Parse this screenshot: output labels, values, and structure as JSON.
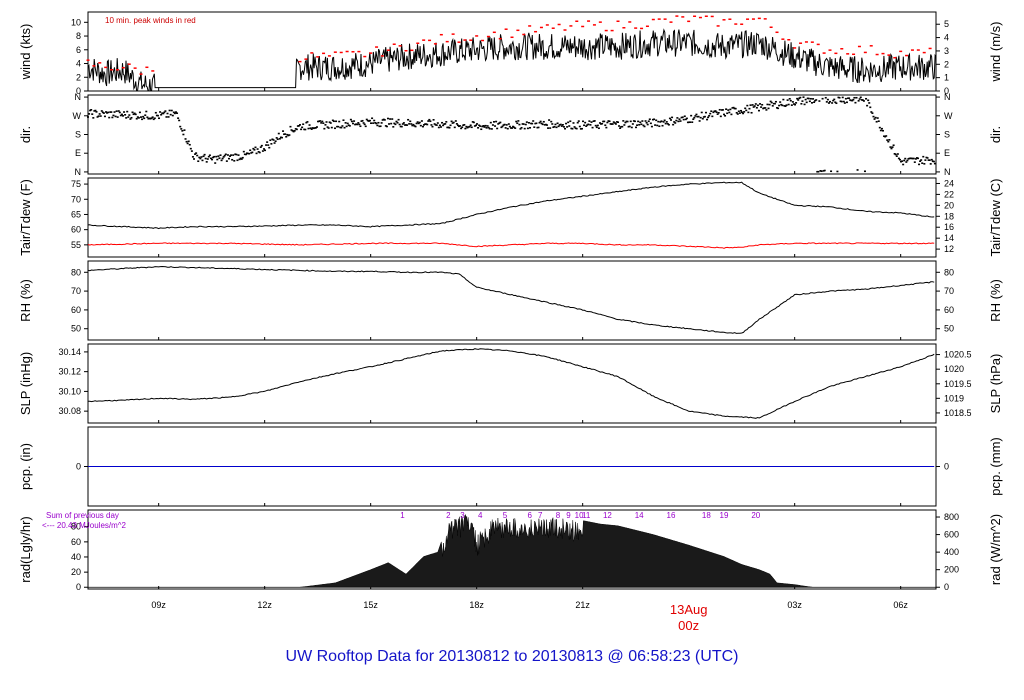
{
  "footer_title": "UW Rooftop Data for 20130812  to  20130813 @ 06:58:23  (UTC)",
  "date_marker": {
    "day": "13Aug",
    "hour": "00z",
    "color": "#e00000"
  },
  "x_axis": {
    "start_hour": 7.0,
    "end_hour": 31.0,
    "ticks": [
      {
        "hour": 9,
        "label": "09z"
      },
      {
        "hour": 12,
        "label": "12z"
      },
      {
        "hour": 15,
        "label": "15z"
      },
      {
        "hour": 18,
        "label": "18z"
      },
      {
        "hour": 21,
        "label": "21z"
      },
      {
        "hour": 27,
        "label": "03z"
      },
      {
        "hour": 30,
        "label": "06z"
      }
    ]
  },
  "chart_data": [
    {
      "id": "wind",
      "type": "line",
      "ylabel_left": "wind (kts)",
      "ylabel_right": "wind (m/s)",
      "annotation": "10 min. peak winds in red",
      "annotation_color": "#cc0000",
      "ylim": [
        0,
        11.5
      ],
      "left_ticks": [
        {
          "v": 0,
          "l": "0"
        },
        {
          "v": 2,
          "l": "2"
        },
        {
          "v": 4,
          "l": "4"
        },
        {
          "v": 6,
          "l": "6"
        },
        {
          "v": 8,
          "l": "8"
        },
        {
          "v": 10,
          "l": "10"
        }
      ],
      "right_ticks": [
        {
          "v": 0,
          "l": "0"
        },
        {
          "v": 1.944,
          "l": "1"
        },
        {
          "v": 3.888,
          "l": "2"
        },
        {
          "v": 5.832,
          "l": "3"
        },
        {
          "v": 7.776,
          "l": "4"
        },
        {
          "v": 9.72,
          "l": "5"
        }
      ],
      "series": [
        {
          "color": "#000000",
          "hours": [
            7,
            7.5,
            8,
            8.5,
            9,
            9.5,
            10,
            10.5,
            11,
            11.5,
            12,
            12.5,
            13,
            14,
            15,
            16,
            17,
            18,
            19,
            20,
            21,
            22,
            23,
            24,
            25,
            26,
            27,
            28,
            29,
            30,
            31
          ],
          "values": [
            3.5,
            2.5,
            3,
            1,
            0.5,
            0.5,
            0.5,
            0.5,
            0.5,
            0.5,
            0.5,
            0.5,
            3.5,
            3.5,
            4,
            5,
            5.5,
            6,
            6.5,
            6.5,
            6.5,
            6.5,
            7,
            7,
            6.5,
            7,
            5,
            3.5,
            3,
            3.5,
            3.5
          ]
        },
        {
          "color": "#ff0000",
          "hours": [
            7,
            7.5,
            8,
            8.5,
            13,
            14,
            15,
            16,
            17,
            18,
            19,
            20,
            21,
            22,
            23,
            24,
            25,
            26,
            27,
            28,
            29,
            30,
            31
          ],
          "values": [
            4,
            3.5,
            3.5,
            3,
            5,
            5,
            5.5,
            6.5,
            7.5,
            8,
            8.5,
            9,
            9.5,
            9.5,
            10,
            10.5,
            10,
            10.5,
            7,
            6,
            6,
            5.5,
            5.5
          ]
        }
      ]
    },
    {
      "id": "dir",
      "type": "scatter",
      "ylabel_left": "dir.",
      "ylabel_right": "dir.",
      "ylim": [
        -10,
        370
      ],
      "left_ticks": [
        {
          "v": 0,
          "l": "N"
        },
        {
          "v": 90,
          "l": "E"
        },
        {
          "v": 180,
          "l": "S"
        },
        {
          "v": 270,
          "l": "W"
        },
        {
          "v": 360,
          "l": "N"
        }
      ],
      "right_ticks": [
        {
          "v": 0,
          "l": "N"
        },
        {
          "v": 90,
          "l": "E"
        },
        {
          "v": 180,
          "l": "S"
        },
        {
          "v": 270,
          "l": "W"
        },
        {
          "v": 360,
          "l": "N"
        }
      ],
      "series": [
        {
          "color": "#000000",
          "hours": [
            7,
            8,
            9,
            9.5,
            10,
            10.5,
            11,
            11.5,
            12,
            12.5,
            13,
            14,
            15,
            16,
            17,
            18,
            19,
            20,
            21,
            22,
            23,
            24,
            25,
            26,
            27,
            28,
            29,
            30,
            31
          ],
          "values": [
            280,
            275,
            270,
            280,
            75,
            60,
            70,
            80,
            120,
            180,
            220,
            230,
            240,
            235,
            230,
            220,
            225,
            230,
            225,
            230,
            235,
            255,
            285,
            310,
            340,
            350,
            350,
            50,
            60
          ]
        }
      ]
    },
    {
      "id": "temp",
      "type": "line",
      "ylabel_left": "Tair/Tdew (F)",
      "ylabel_right": "Tair/Tdew (C)",
      "ylim": [
        51,
        77
      ],
      "left_ticks": [
        {
          "v": 55,
          "l": "55"
        },
        {
          "v": 60,
          "l": "60"
        },
        {
          "v": 65,
          "l": "65"
        },
        {
          "v": 70,
          "l": "70"
        },
        {
          "v": 75,
          "l": "75"
        }
      ],
      "right_ticks": [
        {
          "v": 53.6,
          "l": "12"
        },
        {
          "v": 57.2,
          "l": "14"
        },
        {
          "v": 60.8,
          "l": "16"
        },
        {
          "v": 64.4,
          "l": "18"
        },
        {
          "v": 68.0,
          "l": "20"
        },
        {
          "v": 71.6,
          "l": "22"
        },
        {
          "v": 75.2,
          "l": "24"
        }
      ],
      "series": [
        {
          "color": "#000000",
          "hours": [
            7,
            8,
            9,
            10,
            11,
            12,
            13,
            14,
            15,
            16,
            17,
            18,
            19,
            20,
            21,
            22,
            23,
            24,
            25,
            25.5,
            26,
            27,
            28,
            29,
            30,
            31
          ],
          "values": [
            61.5,
            61,
            60.5,
            61,
            61,
            61.2,
            61.5,
            61.5,
            61,
            61.5,
            62,
            65,
            67.5,
            69.5,
            71,
            72.5,
            74,
            75,
            75.5,
            75.5,
            72,
            68,
            67.5,
            66,
            65.5,
            64
          ]
        },
        {
          "color": "#ff0000",
          "hours": [
            7,
            9,
            11,
            13,
            15,
            16,
            17,
            17.5,
            18,
            19,
            20,
            21,
            22,
            23,
            24,
            24.5,
            25,
            25.5,
            26,
            27,
            28,
            29,
            30,
            31
          ],
          "values": [
            55,
            55.5,
            55.5,
            55,
            55.5,
            55.5,
            55.5,
            55,
            54.5,
            55,
            55.5,
            55.5,
            55,
            55,
            54.5,
            54.3,
            54,
            54.2,
            55,
            55.5,
            55.5,
            55.5,
            55.5,
            55.5
          ]
        }
      ]
    },
    {
      "id": "rh",
      "type": "line",
      "ylabel_left": "RH (%)",
      "ylabel_right": "RH (%)",
      "ylim": [
        44,
        86
      ],
      "left_ticks": [
        {
          "v": 50,
          "l": "50"
        },
        {
          "v": 60,
          "l": "60"
        },
        {
          "v": 70,
          "l": "70"
        },
        {
          "v": 80,
          "l": "80"
        }
      ],
      "right_ticks": [
        {
          "v": 50,
          "l": "50"
        },
        {
          "v": 60,
          "l": "60"
        },
        {
          "v": 70,
          "l": "70"
        },
        {
          "v": 80,
          "l": "80"
        }
      ],
      "series": [
        {
          "color": "#000000",
          "hours": [
            7,
            8,
            9,
            10,
            11,
            12,
            13,
            14,
            15,
            16,
            17,
            17.5,
            18,
            19,
            20,
            21,
            22,
            23,
            24,
            25,
            25.5,
            26,
            27,
            28,
            29,
            30,
            31
          ],
          "values": [
            81,
            82,
            83,
            82.5,
            82,
            81.5,
            81,
            80.5,
            80.5,
            80,
            80,
            79,
            72,
            68,
            64,
            60,
            55,
            52,
            50,
            48,
            47.5,
            55,
            68,
            70,
            71,
            73,
            75
          ]
        }
      ]
    },
    {
      "id": "slp",
      "type": "line",
      "ylabel_left": "SLP (inHg)",
      "ylabel_right": "SLP (hPa)",
      "ylim": [
        30.068,
        30.148
      ],
      "left_ticks": [
        {
          "v": 30.08,
          "l": "30.08"
        },
        {
          "v": 30.1,
          "l": "30.10"
        },
        {
          "v": 30.12,
          "l": "30.12"
        },
        {
          "v": 30.14,
          "l": "30.14"
        }
      ],
      "right_ticks": [
        {
          "v": 30.0782,
          "l": "1018.5"
        },
        {
          "v": 30.093,
          "l": "1019"
        },
        {
          "v": 30.1077,
          "l": "1019.5"
        },
        {
          "v": 30.1225,
          "l": "1020"
        },
        {
          "v": 30.1373,
          "l": "1020.5"
        }
      ],
      "series": [
        {
          "color": "#000000",
          "hours": [
            7,
            8,
            9,
            10,
            11,
            12,
            13,
            14,
            15,
            16,
            17,
            18,
            19,
            20,
            21,
            22,
            23,
            24,
            25,
            26,
            27,
            28,
            29,
            30,
            31
          ],
          "values": [
            30.09,
            30.091,
            30.093,
            30.092,
            30.094,
            30.1,
            30.11,
            30.118,
            30.125,
            30.133,
            30.141,
            30.143,
            30.141,
            30.135,
            30.125,
            30.115,
            30.095,
            30.08,
            30.075,
            30.073,
            30.09,
            30.105,
            30.115,
            30.125,
            30.138
          ]
        }
      ]
    },
    {
      "id": "pcp",
      "type": "line",
      "ylabel_left": "pcp. (in)",
      "ylabel_right": "pcp. (mm)",
      "ylim": [
        -1,
        1
      ],
      "left_ticks": [
        {
          "v": 0,
          "l": "0"
        }
      ],
      "right_ticks": [
        {
          "v": 0,
          "l": "0"
        }
      ],
      "series": [
        {
          "color": "#0000cc",
          "hours": [
            7,
            31
          ],
          "values": [
            0,
            0
          ]
        }
      ]
    },
    {
      "id": "rad",
      "type": "area",
      "ylabel_left": "rad(Lgly/hr)",
      "ylabel_right": "rad (W/m^2)",
      "ylim": [
        -20,
        880
      ],
      "left_ticks": [
        {
          "v": 0,
          "l": "0"
        },
        {
          "v": 172,
          "l": "20"
        },
        {
          "v": 345,
          "l": "40"
        },
        {
          "v": 517,
          "l": "60"
        },
        {
          "v": 690,
          "l": "80"
        }
      ],
      "right_ticks": [
        {
          "v": 0,
          "l": "0"
        },
        {
          "v": 200,
          "l": "200"
        },
        {
          "v": 400,
          "l": "400"
        },
        {
          "v": 600,
          "l": "600"
        },
        {
          "v": 800,
          "l": "800"
        }
      ],
      "annotations": [
        "Sum of previous day",
        "<--- 20.43 MJoules/m^2"
      ],
      "annotation_color": "#9900cc",
      "hour_labels": [
        {
          "hour": 15.9,
          "l": "1"
        },
        {
          "hour": 17.2,
          "l": "2"
        },
        {
          "hour": 17.6,
          "l": "3"
        },
        {
          "hour": 18.1,
          "l": "4"
        },
        {
          "hour": 18.8,
          "l": "5"
        },
        {
          "hour": 19.5,
          "l": "6"
        },
        {
          "hour": 19.8,
          "l": "7"
        },
        {
          "hour": 20.3,
          "l": "8"
        },
        {
          "hour": 20.6,
          "l": "9"
        },
        {
          "hour": 20.9,
          "l": "10"
        },
        {
          "hour": 21.1,
          "l": "11"
        },
        {
          "hour": 21.7,
          "l": "12"
        },
        {
          "hour": 22.6,
          "l": "14"
        },
        {
          "hour": 23.5,
          "l": "16"
        },
        {
          "hour": 24.5,
          "l": "18"
        },
        {
          "hour": 25.0,
          "l": "19"
        },
        {
          "hour": 25.9,
          "l": "20"
        }
      ],
      "series": [
        {
          "color": "#000000",
          "hours": [
            13,
            14,
            15,
            15.5,
            16,
            16.5,
            16.9,
            17.2,
            17.5,
            17.8,
            18,
            18.5,
            19,
            19.5,
            20,
            20.5,
            21,
            21.5,
            22,
            23,
            24,
            25,
            25.5,
            26,
            26.3,
            26.5,
            27,
            27.5
          ],
          "values": [
            0,
            50,
            200,
            280,
            150,
            350,
            400,
            750,
            800,
            850,
            600,
            800,
            800,
            780,
            800,
            780,
            760,
            720,
            700,
            600,
            480,
            350,
            260,
            200,
            150,
            50,
            30,
            0
          ]
        }
      ]
    }
  ]
}
